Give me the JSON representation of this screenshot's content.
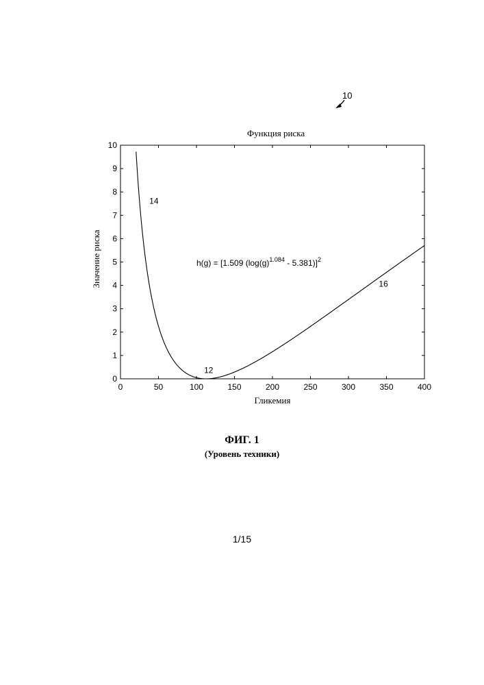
{
  "figure": {
    "reference_number": "10",
    "label": "ФИГ. 1",
    "sublabel": "(Уровень техники)"
  },
  "page_number": "1/15",
  "chart_data": {
    "type": "line",
    "title": "Функция риска",
    "xlabel": "Гликемия",
    "ylabel": "Значение риска",
    "xlim": [
      0,
      400
    ],
    "ylim": [
      0,
      10
    ],
    "x_ticks": [
      0,
      50,
      100,
      150,
      200,
      250,
      300,
      350,
      400
    ],
    "y_ticks": [
      0,
      1,
      2,
      3,
      4,
      5,
      6,
      7,
      8,
      9,
      10
    ],
    "grid": false,
    "formula": {
      "base": "h(g) = [1.509 (log(g)",
      "exponent": "1.084",
      "middle": " - 5.381)]",
      "outer_exponent": "2"
    },
    "series": [
      {
        "function": "h(g) = (1.509 * ((ln g)^1.084 - 5.381))^2",
        "x_range": [
          20,
          400
        ],
        "color": "#000000"
      }
    ],
    "annotations": [
      {
        "text": "14",
        "x": 38,
        "y": 7.5
      },
      {
        "text": "12",
        "x": 110,
        "y": 0.25
      },
      {
        "text": "16",
        "x": 340,
        "y": 3.95
      }
    ]
  }
}
